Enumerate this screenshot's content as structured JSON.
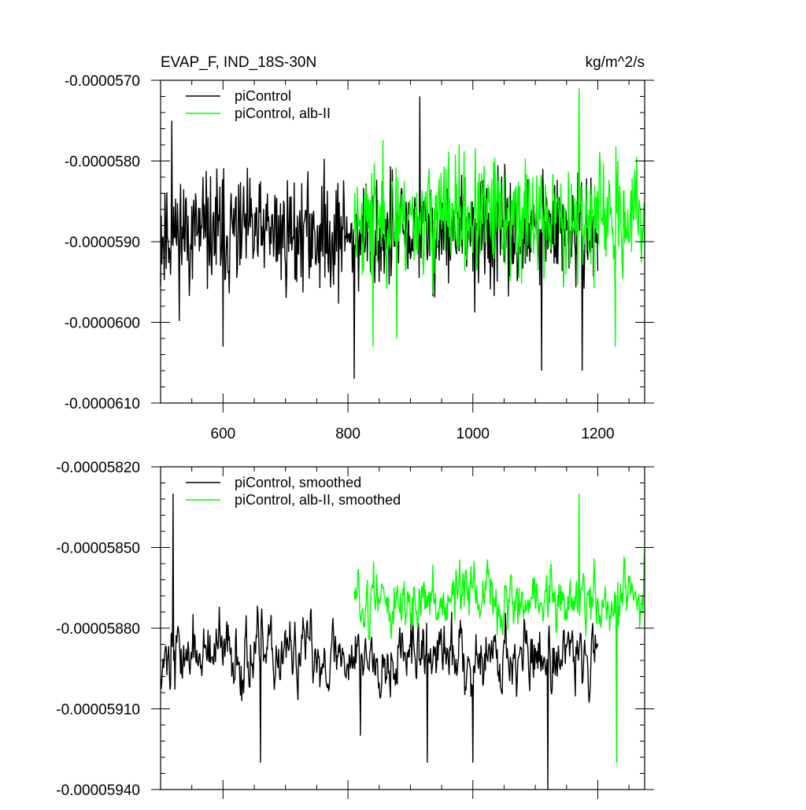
{
  "colors": {
    "control": "#000000",
    "alb": "#00ff00"
  },
  "chart_data": [
    {
      "type": "line",
      "title_left": "EVAP_F, IND_18S-30N",
      "title_right": "kg/m^2/s",
      "xlim": [
        500,
        1275
      ],
      "ylim": [
        -6.1e-05,
        -5.7e-05
      ],
      "x_ticks": [
        600,
        800,
        1000,
        1200
      ],
      "x_tick_labels": [
        "600",
        "800",
        "1000",
        "1200"
      ],
      "y_ticks": [
        -5.7e-05,
        -5.8e-05,
        -5.9e-05,
        -6e-05,
        -6.1e-05
      ],
      "y_tick_labels": [
        "-0.0000570",
        "-0.0000580",
        "-0.0000590",
        "-0.0000600",
        "-0.0000610"
      ],
      "legend_position": "top-left",
      "series": [
        {
          "name": "piControl",
          "color": "#000000",
          "x_start": 500,
          "x_end": 1200,
          "mean": -5.89e-05,
          "noise_amplitude": 7e-07,
          "seed": 11,
          "spikes": [
            [
              518,
              -5.75e-05
            ],
            [
              600,
              -6.03e-05
            ],
            [
              810,
              -6.07e-05
            ],
            [
              915,
              -5.72e-05
            ],
            [
              1110,
              -6.06e-05
            ],
            [
              1175,
              -6.06e-05
            ]
          ]
        },
        {
          "name": "piControl, alb-II",
          "color": "#00ff00",
          "x_start": 810,
          "x_end": 1275,
          "mean": -5.87e-05,
          "noise_amplitude": 7e-07,
          "seed": 23,
          "spikes": [
            [
              840,
              -6.03e-05
            ],
            [
              878,
              -6.02e-05
            ],
            [
              1170,
              -5.71e-05
            ],
            [
              1228,
              -6.03e-05
            ]
          ]
        }
      ]
    },
    {
      "type": "line",
      "xlim": [
        500,
        1275
      ],
      "ylim": [
        -5.94e-05,
        -5.82e-05
      ],
      "x_ticks": [
        600,
        800,
        1000,
        1200
      ],
      "y_ticks": [
        -5.82e-05,
        -5.85e-05,
        -5.88e-05,
        -5.91e-05,
        -5.94e-05
      ],
      "y_tick_labels": [
        "-0.00005820",
        "-0.00005850",
        "-0.00005880",
        "-0.00005910",
        "-0.00005940"
      ],
      "legend_position": "top-left",
      "series": [
        {
          "name": "piControl, smoothed",
          "color": "#000000",
          "x_start": 500,
          "x_end": 1200,
          "mean": -5.89e-05,
          "noise_amplitude": 1.8e-07,
          "seed": 37,
          "spikes": [
            [
              520,
              -5.83e-05
            ],
            [
              660,
              -5.93e-05
            ],
            [
              820,
              -5.92e-05
            ],
            [
              927,
              -5.93e-05
            ],
            [
              1000,
              -5.93e-05
            ],
            [
              1120,
              -5.94e-05
            ]
          ]
        },
        {
          "name": "piControl, alb-II, smoothed",
          "color": "#00ff00",
          "x_start": 810,
          "x_end": 1275,
          "mean": -5.87e-05,
          "noise_amplitude": 1.6e-07,
          "seed": 51,
          "spikes": [
            [
              1170,
              -5.83e-05
            ],
            [
              1230,
              -5.93e-05
            ],
            [
              1275,
              -5.85e-05
            ]
          ]
        }
      ]
    }
  ]
}
